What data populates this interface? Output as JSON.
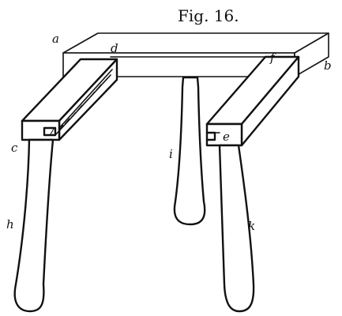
{
  "figure": {
    "title": "Fig. 16.",
    "labels": {
      "a": "a",
      "b": "b",
      "c": "c",
      "d": "d",
      "e": "e",
      "f": "f",
      "h": "h",
      "i": "i",
      "k": "k"
    }
  }
}
